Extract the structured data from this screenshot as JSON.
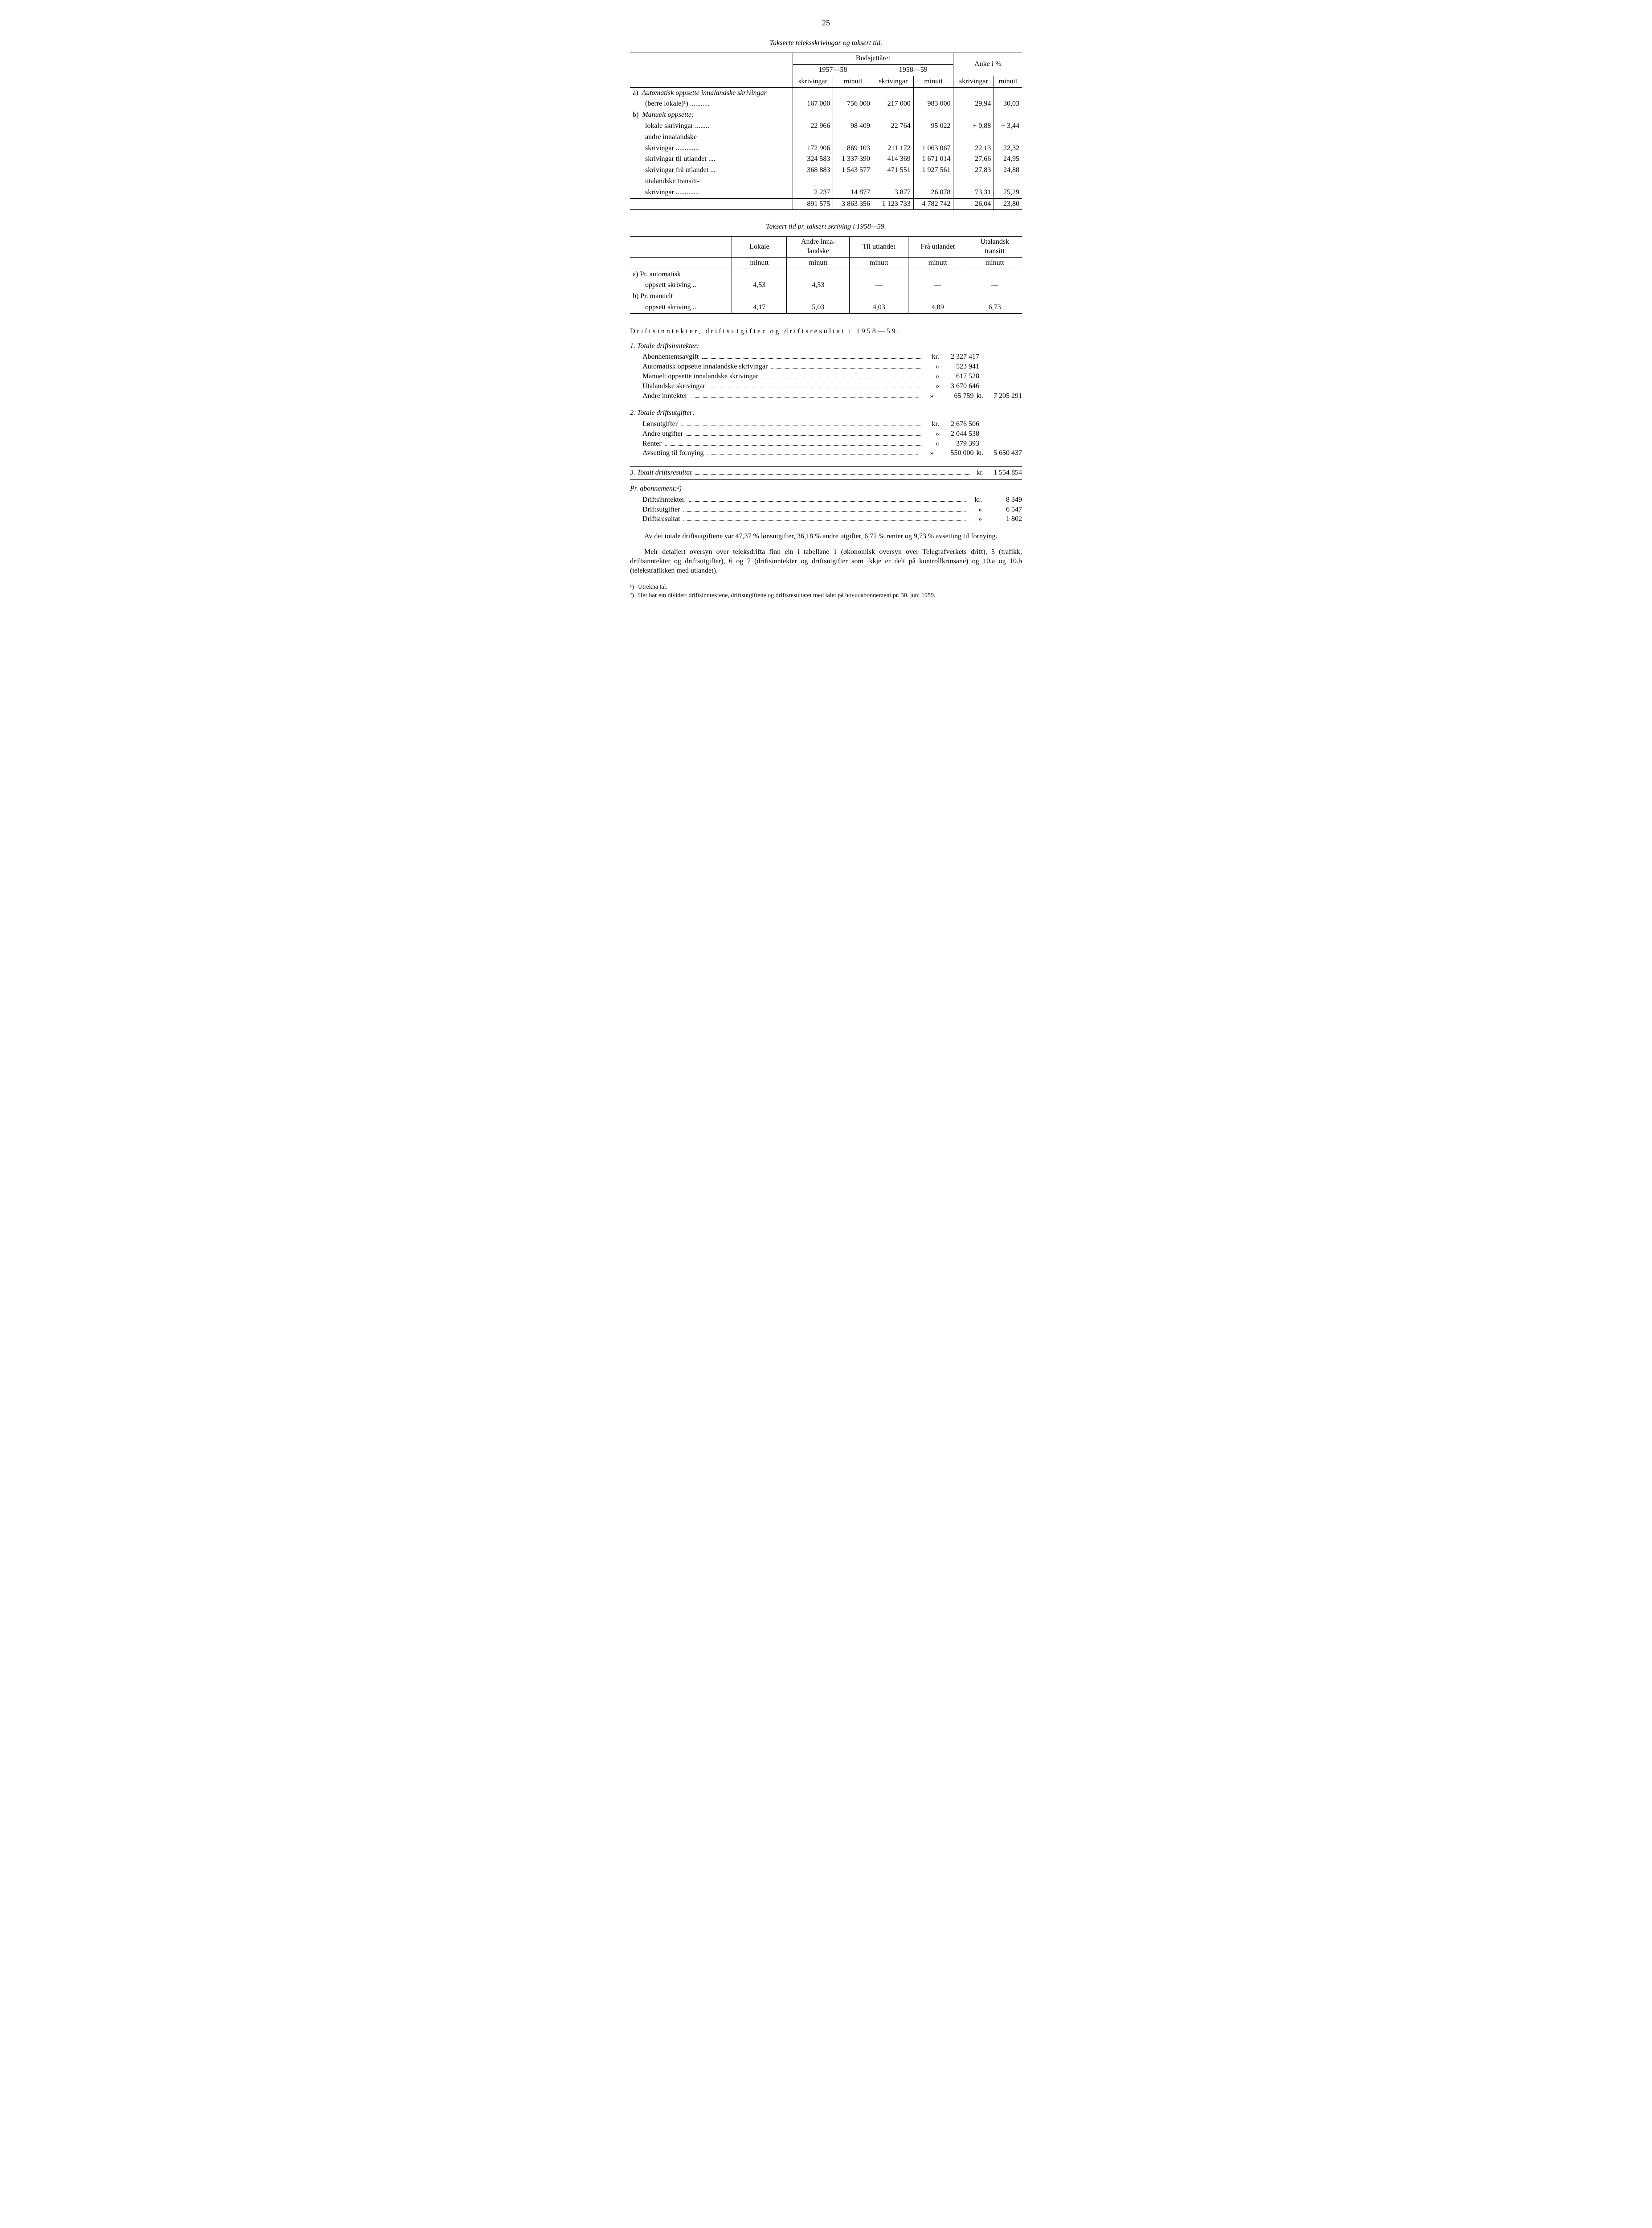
{
  "page_number": "25",
  "table1": {
    "caption": "Takserte teleksskrivingar og taksert tid.",
    "head": {
      "budget": "Budsjettåret",
      "increase": "Auke i %",
      "y1": "1957—58",
      "y2": "1958—59",
      "skriv": "skrivingar",
      "min": "minutt"
    },
    "rows": [
      {
        "label_a": "a)",
        "label_i": "Automatisk oppsette innalandske skrivingar",
        "label_sub": "(berre lokale)¹) ...........",
        "c": [
          "167 000",
          "756 000",
          "217 000",
          "983 000",
          "29,94",
          "30,03"
        ]
      },
      {
        "label_a": "b)",
        "label_i": "Manuelt oppsette:",
        "label_sub": "lokale skrivingar ........",
        "c": [
          "22 966",
          "98 409",
          "22 764",
          "95 022",
          "÷    0,88",
          "÷    3,44"
        ]
      },
      {
        "label_a": "",
        "label_i": "",
        "label_sub": "andre innalandske",
        "is_spacer": true
      },
      {
        "label_a": "",
        "label_i": "",
        "label_sub": "skrivingar .............",
        "c": [
          "172 906",
          "869 103",
          "211 172",
          "1 063 067",
          "22,13",
          "22,32"
        ]
      },
      {
        "label_a": "",
        "label_i": "",
        "label_sub": "skrivingar til utlandet ....",
        "c": [
          "324 583",
          "1 337 390",
          "414 369",
          "1 671 014",
          "27,66",
          "24,95"
        ]
      },
      {
        "label_a": "",
        "label_i": "",
        "label_sub": "skrivingar frå utlandet ...",
        "c": [
          "368 883",
          "1 543 577",
          "471 551",
          "1 927 561",
          "27,83",
          "24,88"
        ]
      },
      {
        "label_a": "",
        "label_i": "",
        "label_sub": "utalandske transitt-",
        "is_spacer": true
      },
      {
        "label_a": "",
        "label_i": "",
        "label_sub": "skrivingar .............",
        "c": [
          "2 237",
          "14 877",
          "3 877",
          "26 078",
          "73,31",
          "75,29"
        ]
      }
    ],
    "total": [
      "891 575",
      "3 863 356",
      "1 123 733",
      "4 782 742",
      "26,04",
      "23,80"
    ]
  },
  "table2": {
    "caption": "Taksert tid pr. taksert skriving i 1958—59.",
    "cols": [
      "Lokale",
      "Andre inna-\nlandske",
      "Til utlandet",
      "Frå utlandet",
      "Utalandsk\ntransitt"
    ],
    "unit": "minutt",
    "rows": [
      {
        "label_a": "a)",
        "label": "Pr. automatisk",
        "label2": "oppsett skriving ..",
        "c": [
          "4,53",
          "4,53",
          "—",
          "—",
          "—"
        ]
      },
      {
        "label_a": "b)",
        "label": "Pr. manuelt",
        "label2": "oppsett skriving ..",
        "c": [
          "4,17",
          "5,03",
          "4,03",
          "4,09",
          "6,73"
        ]
      }
    ]
  },
  "section_title": "Driftsinntekter, driftsutgifter og driftsresultat i 1958—59.",
  "fin1": {
    "head": "1.  Totale driftsinntekter:",
    "rows": [
      {
        "label": "Abonnementsavgift",
        "cur": "kr.",
        "amt": "2 327 417"
      },
      {
        "label": "Automatisk oppsette innalandske skrivingar",
        "cur": "»",
        "amt": "523 941"
      },
      {
        "label": "Manuelt oppsette innalandske skrivingar",
        "cur": "»",
        "amt": "617 528"
      },
      {
        "label": "Utalandske skrivingar",
        "cur": "»",
        "amt": "3 670 646"
      },
      {
        "label": "Andre inntekter",
        "cur": "»",
        "amt": "65 759",
        "total_cur": "kr.",
        "total": "7 205 291"
      }
    ]
  },
  "fin2": {
    "head": "2.  Totale driftsutgifter:",
    "rows": [
      {
        "label": "Lønsutgifter",
        "cur": "kr.",
        "amt": "2 676 506"
      },
      {
        "label": "Andre utgifter",
        "cur": "»",
        "amt": "2 044 538"
      },
      {
        "label": "Renter",
        "cur": "»",
        "amt": "379 393"
      },
      {
        "label": "Avsetting til fornying",
        "cur": "»",
        "amt": "550 000",
        "total_cur": "kr.",
        "total": "5 650 437"
      }
    ]
  },
  "fin3": {
    "label": "3.  Totalt driftsresultat",
    "cur": "kr.",
    "amt": "1 554 854"
  },
  "fin4": {
    "head": "Pr. abonnement:²)",
    "rows": [
      {
        "label": "Driftsinntekter.",
        "cur": "kr.",
        "amt": "8 349"
      },
      {
        "label": "Driftsutgifter",
        "cur": "»",
        "amt": "6 547"
      },
      {
        "label": "Driftsresultat",
        "cur": "»",
        "amt": "1 802"
      }
    ]
  },
  "para1": "Av dei totale driftsutgiftene var 47,37 % lønsutgifter, 36,18 % andre utgifter, 6,72 % renter og 9,73 % avsetting til fornying.",
  "para2": "Meir detaljert oversyn over teleksdrifta finn ein i tabellane 1 (økonomisk oversyn over Telegrafverkets drift), 5 (trafikk, driftsinntekter og driftsutgifter), 6 og 7 (driftsinntekter og driftsutgifter som ikkje er delt på kontrollkrinsane) og 10.a og 10.b (telekstrafikken med utlandet).",
  "footnotes": [
    {
      "mark": "¹)",
      "text": "Utrekna tal."
    },
    {
      "mark": "²)",
      "text": "Her har ein dividert driftsinntektene, driftsutgiftene og driftsresultatet med talet på hovudabonnement pr. 30. juni 1959."
    }
  ]
}
